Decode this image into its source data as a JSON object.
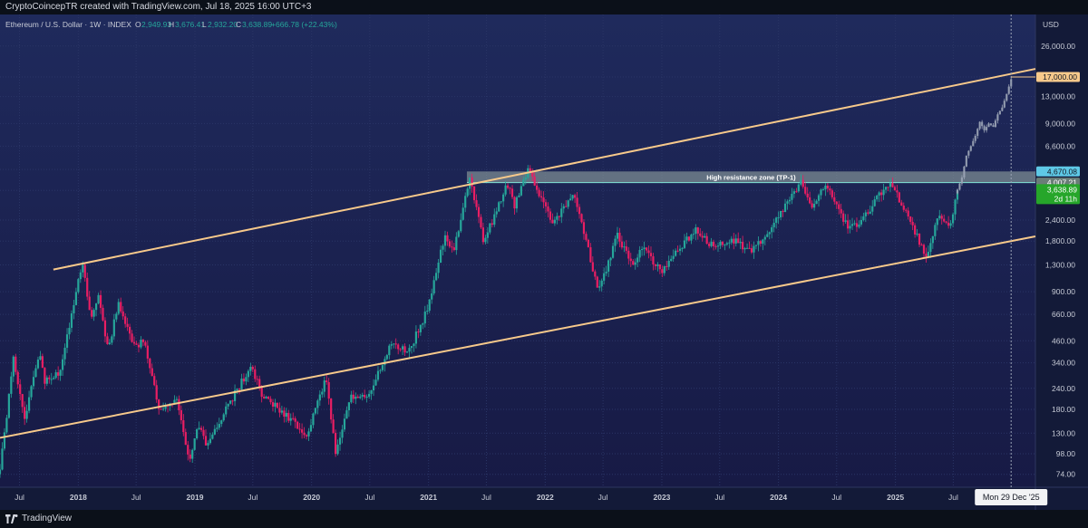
{
  "header": {
    "credit": "CryptoCoincepTR created with TradingView.com, Jul 18, 2025 16:00 UTC+3"
  },
  "symbol": {
    "name": "Ethereum / U.S. Dollar · 1W · INDEX",
    "open_label": "O",
    "open": "2,949.93",
    "high_label": "H",
    "high": "3,676.41",
    "low_label": "L",
    "low": "2,932.20",
    "close_label": "C",
    "close": "3,638.89",
    "change": "+666.78 (+22.43%)"
  },
  "currency": "USD",
  "footer": {
    "brand": "TradingView"
  },
  "colors": {
    "background": "#18204a",
    "up": "#26a69a",
    "down": "#e91e63",
    "channel": "#f7c98b",
    "zone": "#9fb0a8",
    "projection": "#9aa3b5"
  },
  "chart_data": {
    "type": "candlestick",
    "y_scale": "log",
    "ylim": [
      62,
      40000
    ],
    "x_range": [
      "2017-05-01",
      "2026-03-15"
    ],
    "y_ticks": [
      "26,000.00",
      "17,000.00",
      "13,000.00",
      "9,000.00",
      "6,600.00",
      "4,800.00",
      "3,600.00",
      "2,400.00",
      "1,800.00",
      "1,300.00",
      "900.00",
      "660.00",
      "460.00",
      "340.00",
      "240.00",
      "180.00",
      "130.00",
      "98.00",
      "74.00"
    ],
    "y_tick_values": [
      26000,
      17000,
      13000,
      9000,
      6600,
      4800,
      3600,
      2400,
      1800,
      1300,
      900,
      660,
      460,
      340,
      240,
      180,
      130,
      98,
      74
    ],
    "x_ticks": [
      {
        "date": "2017-07-01",
        "label": "Jul",
        "major": false
      },
      {
        "date": "2018-01-01",
        "label": "2018",
        "major": true
      },
      {
        "date": "2018-07-01",
        "label": "Jul",
        "major": false
      },
      {
        "date": "2019-01-01",
        "label": "2019",
        "major": true
      },
      {
        "date": "2019-07-01",
        "label": "Jul",
        "major": false
      },
      {
        "date": "2020-01-01",
        "label": "2020",
        "major": true
      },
      {
        "date": "2020-07-01",
        "label": "Jul",
        "major": false
      },
      {
        "date": "2021-01-01",
        "label": "2021",
        "major": true
      },
      {
        "date": "2021-07-01",
        "label": "Jul",
        "major": false
      },
      {
        "date": "2022-01-01",
        "label": "2022",
        "major": true
      },
      {
        "date": "2022-07-01",
        "label": "Jul",
        "major": false
      },
      {
        "date": "2023-01-01",
        "label": "2023",
        "major": true
      },
      {
        "date": "2023-07-01",
        "label": "Jul",
        "major": false
      },
      {
        "date": "2024-01-01",
        "label": "2024",
        "major": true
      },
      {
        "date": "2024-07-01",
        "label": "Jul",
        "major": false
      },
      {
        "date": "2025-01-01",
        "label": "2025",
        "major": true
      },
      {
        "date": "2025-07-01",
        "label": "Jul",
        "major": false
      }
    ],
    "crosshair": {
      "date": "2025-12-29",
      "label": "Mon 29 Dec '25",
      "price": 17000,
      "price_label": "17,000.00"
    },
    "channel": {
      "upper": [
        [
          "2017-10-15",
          1220
        ],
        [
          "2026-03-15",
          19000
        ]
      ],
      "lower": [
        [
          "2017-05-01",
          122
        ],
        [
          "2026-03-15",
          1920
        ]
      ]
    },
    "zone": {
      "label": "High resistance zone (TP-1)",
      "from": 4007.21,
      "to": 4670.08,
      "start": "2021-05-01",
      "end": "2026-03-15",
      "top_label": "4,670.08",
      "bottom_label": "4,007.21"
    },
    "last_price": {
      "value": 3638.89,
      "label": "3,638.89",
      "countdown": "2d 11h"
    },
    "projection_line": {
      "from": [
        "2025-07-14",
        3700
      ],
      "to": [
        "2025-12-29",
        17000
      ]
    },
    "price_path": [
      [
        "2017-05-01",
        78
      ],
      [
        "2017-06-12",
        360
      ],
      [
        "2017-07-17",
        160
      ],
      [
        "2017-09-01",
        390
      ],
      [
        "2017-09-18",
        260
      ],
      [
        "2017-11-05",
        300
      ],
      [
        "2017-12-20",
        800
      ],
      [
        "2018-01-13",
        1350
      ],
      [
        "2018-02-08",
        640
      ],
      [
        "2018-03-05",
        830
      ],
      [
        "2018-04-05",
        390
      ],
      [
        "2018-05-05",
        780
      ],
      [
        "2018-06-28",
        420
      ],
      [
        "2018-07-24",
        470
      ],
      [
        "2018-09-12",
        180
      ],
      [
        "2018-11-05",
        210
      ],
      [
        "2018-12-14",
        85
      ],
      [
        "2019-01-10",
        150
      ],
      [
        "2019-02-08",
        110
      ],
      [
        "2019-04-01",
        170
      ],
      [
        "2019-06-26",
        330
      ],
      [
        "2019-08-01",
        215
      ],
      [
        "2019-10-01",
        175
      ],
      [
        "2019-12-18",
        125
      ],
      [
        "2020-02-14",
        280
      ],
      [
        "2020-03-16",
        100
      ],
      [
        "2020-05-01",
        210
      ],
      [
        "2020-07-01",
        225
      ],
      [
        "2020-09-01",
        430
      ],
      [
        "2020-11-01",
        400
      ],
      [
        "2021-01-01",
        730
      ],
      [
        "2021-02-20",
        1950
      ],
      [
        "2021-03-20",
        1600
      ],
      [
        "2021-05-12",
        4300
      ],
      [
        "2021-06-22",
        1750
      ],
      [
        "2021-08-15",
        3200
      ],
      [
        "2021-09-05",
        3950
      ],
      [
        "2021-09-26",
        2900
      ],
      [
        "2021-11-10",
        4850
      ],
      [
        "2022-01-24",
        2250
      ],
      [
        "2022-04-01",
        3450
      ],
      [
        "2022-06-18",
        900
      ],
      [
        "2022-08-14",
        1950
      ],
      [
        "2022-10-01",
        1300
      ],
      [
        "2022-11-05",
        1650
      ],
      [
        "2022-12-30",
        1180
      ],
      [
        "2023-04-15",
        2100
      ],
      [
        "2023-06-15",
        1650
      ],
      [
        "2023-08-10",
        1850
      ],
      [
        "2023-10-10",
        1550
      ],
      [
        "2023-12-20",
        2300
      ],
      [
        "2024-03-12",
        4000
      ],
      [
        "2024-04-18",
        2900
      ],
      [
        "2024-05-28",
        3900
      ],
      [
        "2024-08-05",
        2150
      ],
      [
        "2024-09-10",
        2300
      ],
      [
        "2024-12-15",
        4100
      ],
      [
        "2025-02-05",
        2600
      ],
      [
        "2025-04-09",
        1450
      ],
      [
        "2025-05-15",
        2600
      ],
      [
        "2025-06-22",
        2150
      ],
      [
        "2025-07-14",
        3640
      ]
    ],
    "projection_path": [
      [
        "2025-07-14",
        3640
      ],
      [
        "2025-07-28",
        4300
      ],
      [
        "2025-08-11",
        5800
      ],
      [
        "2025-08-25",
        6600
      ],
      [
        "2025-09-08",
        7600
      ],
      [
        "2025-09-22",
        9200
      ],
      [
        "2025-10-06",
        8200
      ],
      [
        "2025-10-20",
        9000
      ],
      [
        "2025-11-03",
        8600
      ],
      [
        "2025-11-17",
        10200
      ],
      [
        "2025-12-01",
        11200
      ],
      [
        "2025-12-15",
        13500
      ],
      [
        "2025-12-29",
        16500
      ]
    ]
  }
}
